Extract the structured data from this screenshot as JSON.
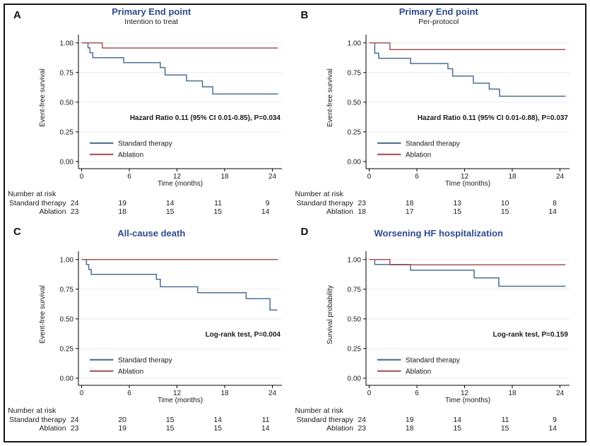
{
  "figure": {
    "frame_border_color": "#151515",
    "background_color": "#ffffff",
    "title_color": "#2e4a8a",
    "axis_color": "#000000",
    "grid_color": "#ebebeb",
    "colors": {
      "standard": "#4c6f94",
      "ablation": "#a5545a"
    }
  },
  "chart_data": [
    {
      "type": "line",
      "panel": "A",
      "title": "Primary End point",
      "subtitle": "Intention to treat",
      "xlabel": "Time (months)",
      "ylabel": "Event-free survival",
      "annotation": "Hazard Ratio 0.11 (95% CI 0.01-0.85), P=0.034",
      "xticks": [
        0,
        6,
        12,
        18,
        24
      ],
      "yticks": [
        "1.00",
        "0.75",
        "0.50",
        "0.25",
        "0.00"
      ],
      "xlim": [
        -0.4,
        25.2
      ],
      "ylim": [
        -0.06,
        1.07
      ],
      "grid": "horizontal",
      "legend_position": "lower-left-inside",
      "series": [
        {
          "name": "Standard therapy",
          "color_key": "standard",
          "steps": [
            [
              0,
              1.0
            ],
            [
              0.8,
              0.958
            ],
            [
              1.05,
              0.917
            ],
            [
              1.4,
              0.875
            ],
            [
              5.3,
              0.833
            ],
            [
              9.9,
              0.792
            ],
            [
              10.5,
              0.73
            ],
            [
              13.2,
              0.68
            ],
            [
              15.2,
              0.63
            ],
            [
              16.5,
              0.57
            ]
          ],
          "end": 24.7
        },
        {
          "name": "Ablation",
          "color_key": "ablation",
          "steps": [
            [
              0,
              1.0
            ],
            [
              2.6,
              0.957
            ]
          ],
          "end": 24.7
        }
      ],
      "risk": {
        "header": "Number at risk",
        "rows": [
          {
            "label": "Standard therapy",
            "values": [
              "24",
              "19",
              "14",
              "11",
              "9"
            ]
          },
          {
            "label": "Ablation",
            "values": [
              "23",
              "18",
              "15",
              "15",
              "14"
            ]
          }
        ]
      }
    },
    {
      "type": "line",
      "panel": "B",
      "title": "Primary End point",
      "subtitle": "Per-protocol",
      "xlabel": "Time (months)",
      "ylabel": "Event-free survival",
      "annotation": "Hazard Ratio 0.11 (95% CI 0.01-0.88), P=0.037",
      "xticks": [
        0,
        6,
        12,
        18,
        24
      ],
      "yticks": [
        "1.00",
        "0.75",
        "0.50",
        "0.25",
        "0.00"
      ],
      "xlim": [
        -0.4,
        25.2
      ],
      "ylim": [
        -0.06,
        1.07
      ],
      "grid": "horizontal",
      "legend_position": "lower-left-inside",
      "series": [
        {
          "name": "Standard therapy",
          "color_key": "standard",
          "steps": [
            [
              0,
              1.0
            ],
            [
              0.7,
              0.913
            ],
            [
              1.2,
              0.87
            ],
            [
              5.2,
              0.826
            ],
            [
              9.9,
              0.782
            ],
            [
              10.5,
              0.72
            ],
            [
              13.1,
              0.66
            ],
            [
              15.1,
              0.61
            ],
            [
              16.4,
              0.55
            ]
          ],
          "end": 24.7
        },
        {
          "name": "Ablation",
          "color_key": "ablation",
          "steps": [
            [
              0,
              1.0
            ],
            [
              2.6,
              0.944
            ]
          ],
          "end": 24.7
        }
      ],
      "risk": {
        "header": "Number at risk",
        "rows": [
          {
            "label": "Standard therapy",
            "values": [
              "23",
              "18",
              "13",
              "10",
              "8"
            ]
          },
          {
            "label": "Ablation",
            "values": [
              "18",
              "17",
              "15",
              "15",
              "14"
            ]
          }
        ]
      }
    },
    {
      "type": "line",
      "panel": "C",
      "title": "All-cause death",
      "subtitle": "",
      "xlabel": "Time (months)",
      "ylabel": "Event-free survival",
      "annotation": "Log-rank test, P=0.004",
      "xticks": [
        0,
        6,
        12,
        18,
        24
      ],
      "yticks": [
        "1.00",
        "0.75",
        "0.50",
        "0.25",
        "0.00"
      ],
      "xlim": [
        -0.4,
        25.2
      ],
      "ylim": [
        -0.06,
        1.07
      ],
      "grid": "horizontal",
      "legend_position": "lower-left-inside",
      "series": [
        {
          "name": "Standard therapy",
          "color_key": "standard",
          "steps": [
            [
              0,
              1.0
            ],
            [
              0.6,
              0.958
            ],
            [
              0.9,
              0.917
            ],
            [
              1.2,
              0.875
            ],
            [
              9.4,
              0.833
            ],
            [
              9.9,
              0.77
            ],
            [
              14.6,
              0.72
            ],
            [
              20.7,
              0.67
            ],
            [
              23.7,
              0.575
            ]
          ],
          "end": 24.6
        },
        {
          "name": "Ablation",
          "color_key": "ablation",
          "steps": [
            [
              0,
              1.0
            ]
          ],
          "end": 24.7
        }
      ],
      "risk": {
        "header": "Number at risk",
        "rows": [
          {
            "label": "Standard therapy",
            "values": [
              "24",
              "20",
              "15",
              "14",
              "11"
            ]
          },
          {
            "label": "Ablation",
            "values": [
              "23",
              "19",
              "15",
              "15",
              "14"
            ]
          }
        ]
      }
    },
    {
      "type": "line",
      "panel": "D",
      "title": "Worsening HF hospitalization",
      "subtitle": "",
      "xlabel": "Time (months)",
      "ylabel": "Survival probability",
      "annotation": "Log-rank test, P=0.159",
      "xticks": [
        0,
        6,
        12,
        18,
        24
      ],
      "yticks": [
        "1.00",
        "0.75",
        "0.50",
        "0.25",
        "0.00"
      ],
      "xlim": [
        -0.4,
        25.2
      ],
      "ylim": [
        -0.06,
        1.07
      ],
      "grid": "horizontal",
      "legend_position": "lower-left-inside",
      "series": [
        {
          "name": "Standard therapy",
          "color_key": "standard",
          "steps": [
            [
              0,
              1.0
            ],
            [
              0.7,
              0.958
            ],
            [
              5.2,
              0.91
            ],
            [
              13.2,
              0.845
            ],
            [
              16.3,
              0.775
            ]
          ],
          "end": 24.7
        },
        {
          "name": "Ablation",
          "color_key": "ablation",
          "steps": [
            [
              0,
              1.0
            ],
            [
              2.6,
              0.955
            ]
          ],
          "end": 24.7
        }
      ],
      "risk": {
        "header": "Number at risk",
        "rows": [
          {
            "label": "Standard therapy",
            "values": [
              "24",
              "19",
              "14",
              "11",
              "9"
            ]
          },
          {
            "label": "Ablation",
            "values": [
              "23",
              "18",
              "15",
              "15",
              "14"
            ]
          }
        ]
      }
    }
  ]
}
